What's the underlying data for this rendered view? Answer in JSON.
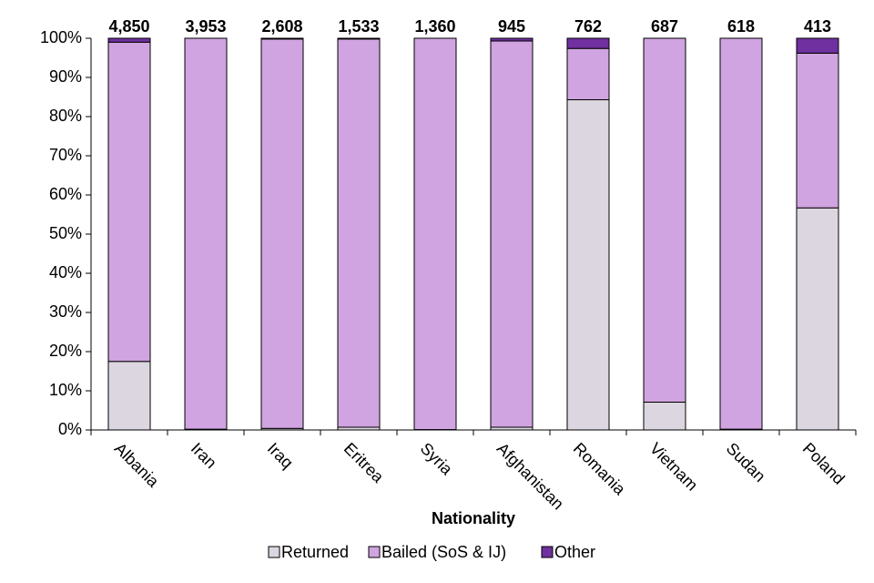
{
  "chart_data": {
    "type": "stacked_bar",
    "x_label": "Nationality",
    "categories": [
      "Albania",
      "Iran",
      "Iraq",
      "Eritrea",
      "Syria",
      "Afghanistan",
      "Romania",
      "Vietnam",
      "Sudan",
      "Poland"
    ],
    "series": [
      {
        "name": "Returned",
        "color": "#dcd6e0",
        "values": [
          17.5,
          0.2,
          0.4,
          0.7,
          0.1,
          0.7,
          84.3,
          7.1,
          0.2,
          56.7
        ]
      },
      {
        "name": "Bailed (SoS & IJ)",
        "color": "#d0a4e0",
        "values": [
          81.5,
          99.8,
          99.4,
          99.1,
          99.9,
          98.6,
          13.1,
          92.9,
          99.8,
          39.5
        ]
      },
      {
        "name": "Other",
        "color": "#7030a0",
        "values": [
          1.0,
          0,
          0.2,
          0.2,
          0,
          0.7,
          2.6,
          0,
          0,
          3.8
        ]
      }
    ],
    "totals": [
      {
        "value": 4850,
        "label": "4,850"
      },
      {
        "value": 3953,
        "label": "3,953"
      },
      {
        "value": 2608,
        "label": "2,608"
      },
      {
        "value": 1533,
        "label": "1,533"
      },
      {
        "value": 1360,
        "label": "1,360"
      },
      {
        "value": 945,
        "label": "945"
      },
      {
        "value": 762,
        "label": "762"
      },
      {
        "value": 687,
        "label": "687"
      },
      {
        "value": 618,
        "label": "618"
      },
      {
        "value": 413,
        "label": "413"
      }
    ],
    "ylim": [
      0,
      100
    ],
    "yticks": [
      {
        "value": 0,
        "label": "0%"
      },
      {
        "value": 10,
        "label": "10%"
      },
      {
        "value": 20,
        "label": "20%"
      },
      {
        "value": 30,
        "label": "30%"
      },
      {
        "value": 40,
        "label": "40%"
      },
      {
        "value": 50,
        "label": "50%"
      },
      {
        "value": 60,
        "label": "60%"
      },
      {
        "value": 70,
        "label": "70%"
      },
      {
        "value": 80,
        "label": "80%"
      },
      {
        "value": 90,
        "label": "90%"
      },
      {
        "value": 100,
        "label": "100%"
      }
    ],
    "legend": "bottom"
  }
}
